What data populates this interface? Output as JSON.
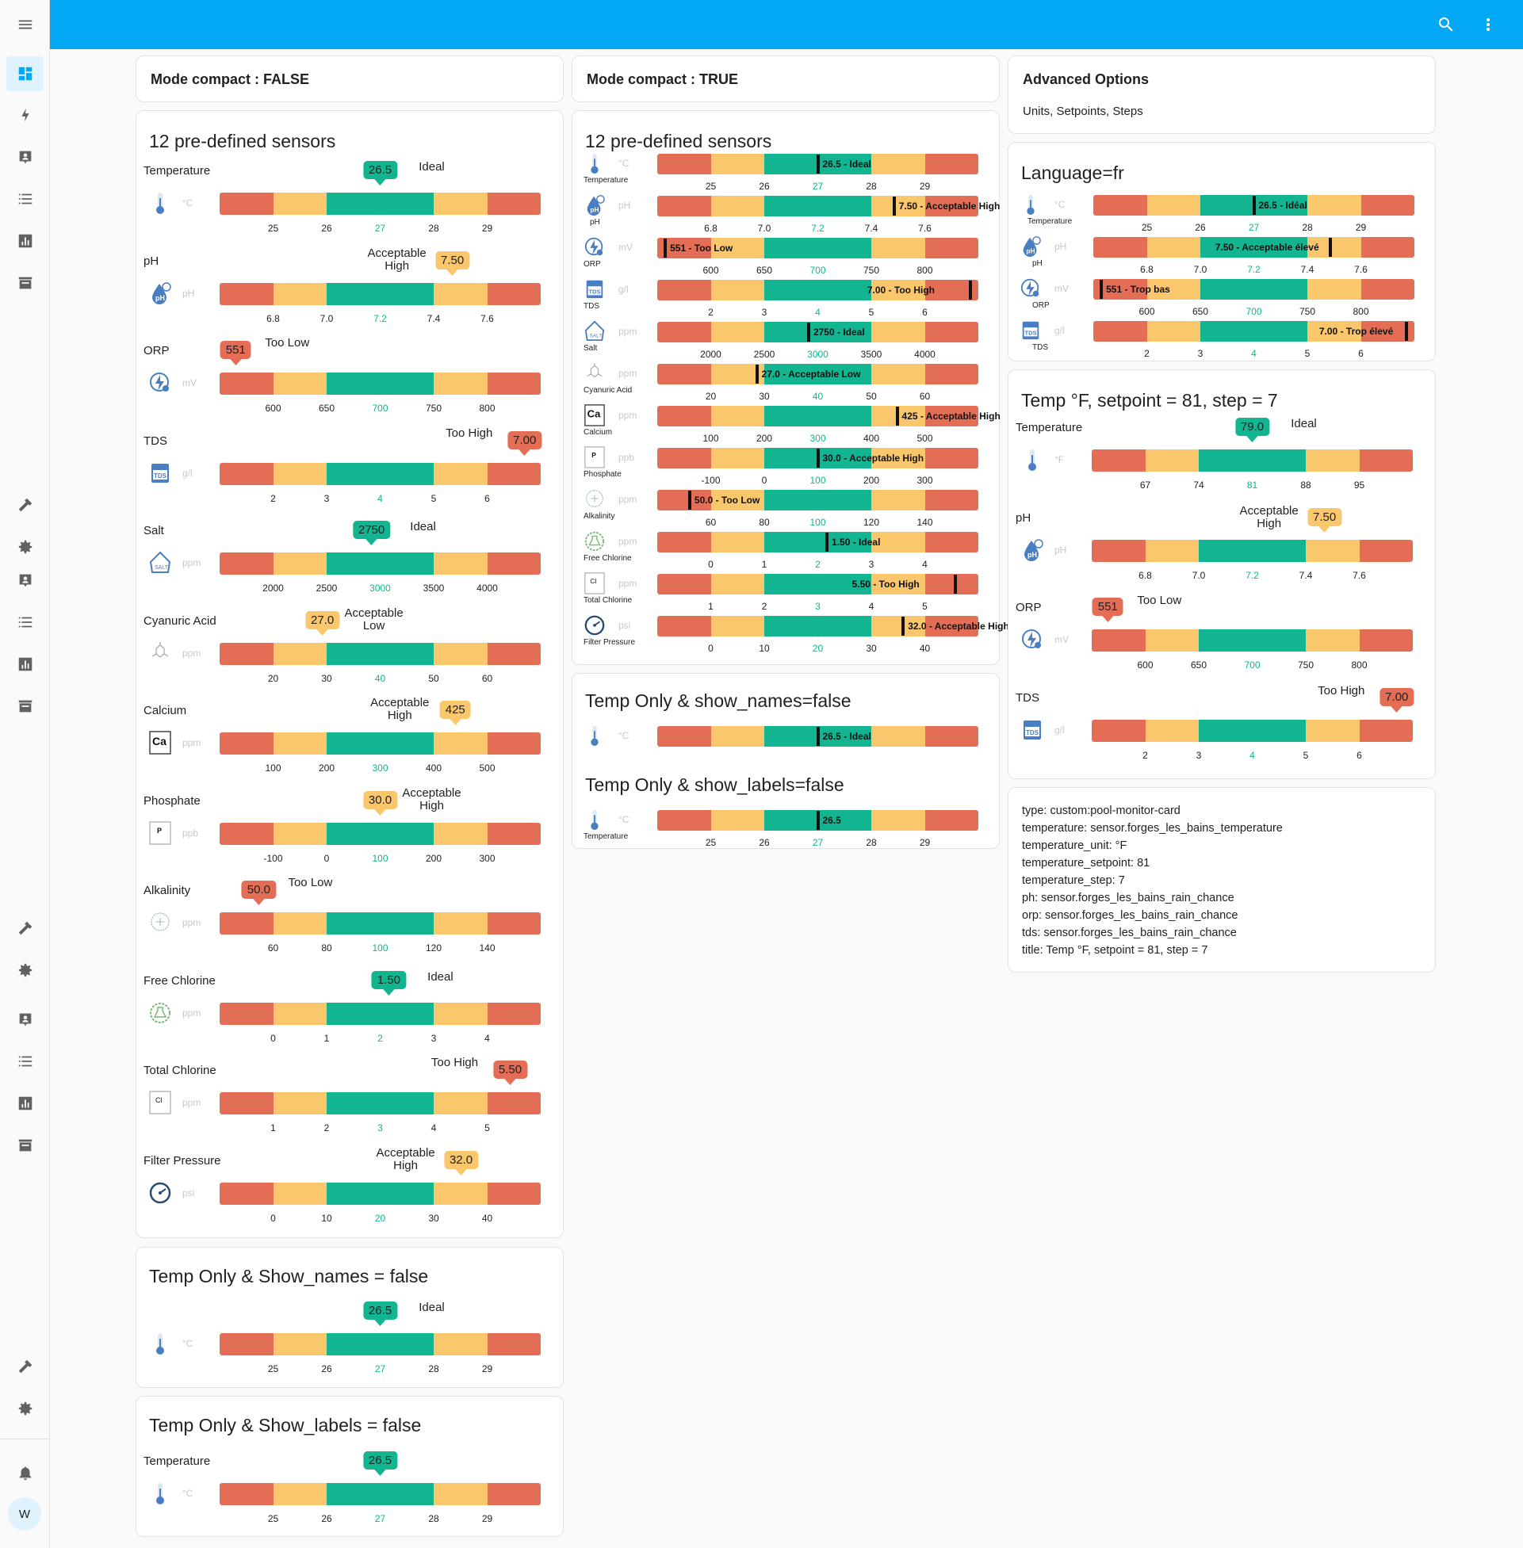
{
  "colors": {
    "topbar": "#03a9f4",
    "red": "#e36e55",
    "yellow": "#fbc76c",
    "green": "#12b590"
  },
  "icons": {
    "menu": "menu-icon",
    "search": "search-icon",
    "more": "more-vert-icon"
  },
  "sidebar": {
    "avatar_letter": "W"
  },
  "cards": {
    "c1_header": "Mode compact : FALSE",
    "c2_header": "Mode compact : TRUE",
    "c3_header": "Advanced Options",
    "c3_sub": "Units, Setpoints, Steps",
    "sensors_title": "12 pre-defined sensors",
    "temp_names_title": "Temp Only & Show_names = false",
    "temp_labels_title": "Temp Only & Show_labels = false",
    "c2_temp_names_title": "Temp Only & show_names=false",
    "c2_temp_labels_title": "Temp Only & show_labels=false",
    "lang_title": "Language=fr",
    "adv_title": "Temp °F, setpoint = 81, step = 7"
  },
  "sensors": [
    {
      "name": "Temperature",
      "unit": "°C",
      "value": "26.5",
      "state": "Ideal",
      "ticks": [
        "25",
        "26",
        "27",
        "28",
        "29"
      ],
      "color": "g",
      "pos": 0.5,
      "compact_text": "26.5 - Ideal"
    },
    {
      "name": "pH",
      "unit": "pH",
      "value": "7.50",
      "state": "Acceptable High",
      "ticks": [
        "6.8",
        "7.0",
        "7.2",
        "7.4",
        "7.6"
      ],
      "color": "y",
      "pos": 0.75,
      "compact_text": "7.50 - Acceptable High"
    },
    {
      "name": "ORP",
      "unit": "mV",
      "value": "551",
      "state": "Too Low",
      "ticks": [
        "600",
        "650",
        "700",
        "750",
        "800"
      ],
      "color": "r",
      "pos": 0.0,
      "compact_text": "551 - Too Low"
    },
    {
      "name": "TDS",
      "unit": "g/l",
      "value": "7.00",
      "state": "Too High",
      "ticks": [
        "2",
        "3",
        "4",
        "5",
        "6"
      ],
      "color": "r",
      "pos": 1.0,
      "compact_text": "7.00 - Too High"
    },
    {
      "name": "Salt",
      "unit": "ppm",
      "value": "2750",
      "state": "Ideal",
      "ticks": [
        "2000",
        "2500",
        "3000",
        "3500",
        "4000"
      ],
      "color": "g",
      "pos": 0.47,
      "compact_text": "2750 - Ideal"
    },
    {
      "name": "Cyanuric Acid",
      "unit": "ppm",
      "value": "27.0",
      "state": "Acceptable Low",
      "ticks": [
        "20",
        "30",
        "40",
        "50",
        "60"
      ],
      "color": "y",
      "pos": 0.3,
      "compact_text": "27.0 - Acceptable Low"
    },
    {
      "name": "Calcium",
      "unit": "ppm",
      "value": "425",
      "state": "Acceptable High",
      "ticks": [
        "100",
        "200",
        "300",
        "400",
        "500"
      ],
      "color": "y",
      "pos": 0.76,
      "compact_text": "425 - Acceptable High"
    },
    {
      "name": "Phosphate",
      "unit": "ppb",
      "value": "30.0",
      "state": "Acceptable High",
      "ticks": [
        "-100",
        "0",
        "100",
        "200",
        "300"
      ],
      "color": "y",
      "pos": 0.5,
      "compact_text": "30.0 - Acceptable High"
    },
    {
      "name": "Alkalinity",
      "unit": "ppm",
      "value": "50.0",
      "state": "Too Low",
      "ticks": [
        "60",
        "80",
        "100",
        "120",
        "140"
      ],
      "color": "r",
      "pos": 0.08,
      "compact_text": "50.0 - Too Low"
    },
    {
      "name": "Free Chlorine",
      "unit": "ppm",
      "value": "1.50",
      "state": "Ideal",
      "ticks": [
        "0",
        "1",
        "2",
        "3",
        "4"
      ],
      "color": "g",
      "pos": 0.53,
      "compact_text": "1.50 - Ideal"
    },
    {
      "name": "Total Chlorine",
      "unit": "ppm",
      "value": "5.50",
      "state": "Too High",
      "ticks": [
        "1",
        "2",
        "3",
        "4",
        "5"
      ],
      "color": "r",
      "pos": 0.95,
      "compact_text": "5.50 - Too High"
    },
    {
      "name": "Filter Pressure",
      "unit": "psi",
      "value": "32.0",
      "state": "Acceptable High",
      "ticks": [
        "0",
        "10",
        "20",
        "30",
        "40"
      ],
      "color": "y",
      "pos": 0.78,
      "compact_text": "32.0 - Acceptable High"
    }
  ],
  "lang_fr": [
    {
      "name": "Temperature",
      "unit": "°C",
      "text": "26.5 - Idéal",
      "ticks": [
        "25",
        "26",
        "27",
        "28",
        "29"
      ]
    },
    {
      "name": "pH",
      "unit": "pH",
      "text": "7.50 - Acceptable élevé",
      "ticks": [
        "6.8",
        "7.0",
        "7.2",
        "7.4",
        "7.6"
      ]
    },
    {
      "name": "ORP",
      "unit": "mV",
      "text": "551 - Trop bas",
      "ticks": [
        "600",
        "650",
        "700",
        "750",
        "800"
      ]
    },
    {
      "name": "TDS",
      "unit": "g/l",
      "text": "7.00 - Trop élevé",
      "ticks": [
        "2",
        "3",
        "4",
        "5",
        "6"
      ]
    }
  ],
  "adv": [
    {
      "name": "Temperature",
      "unit": "°F",
      "value": "79.0",
      "state": "Ideal",
      "ticks": [
        "67",
        "74",
        "81",
        "88",
        "95"
      ]
    },
    {
      "name": "pH",
      "unit": "pH",
      "value": "7.50",
      "state": "Acceptable High",
      "ticks": [
        "6.8",
        "7.0",
        "7.2",
        "7.4",
        "7.6"
      ]
    },
    {
      "name": "ORP",
      "unit": "mV",
      "value": "551",
      "state": "Too Low",
      "ticks": [
        "600",
        "650",
        "700",
        "750",
        "800"
      ]
    },
    {
      "name": "TDS",
      "unit": "g/l",
      "value": "7.00",
      "state": "Too High",
      "ticks": [
        "2",
        "3",
        "4",
        "5",
        "6"
      ]
    }
  ],
  "compact_temp_only": {
    "text_names": "26.5 - Ideal",
    "text_labels": "26.5",
    "name": "Temperature"
  },
  "yaml": [
    "type: custom:pool-monitor-card",
    "temperature: sensor.forges_les_bains_temperature",
    "temperature_unit: °F",
    "temperature_setpoint: 81",
    "temperature_step: 7",
    "ph: sensor.forges_les_bains_rain_chance",
    "orp: sensor.forges_les_bains_rain_chance",
    "tds: sensor.forges_les_bains_rain_chance",
    "title: Temp °F, setpoint = 81, step = 7"
  ]
}
